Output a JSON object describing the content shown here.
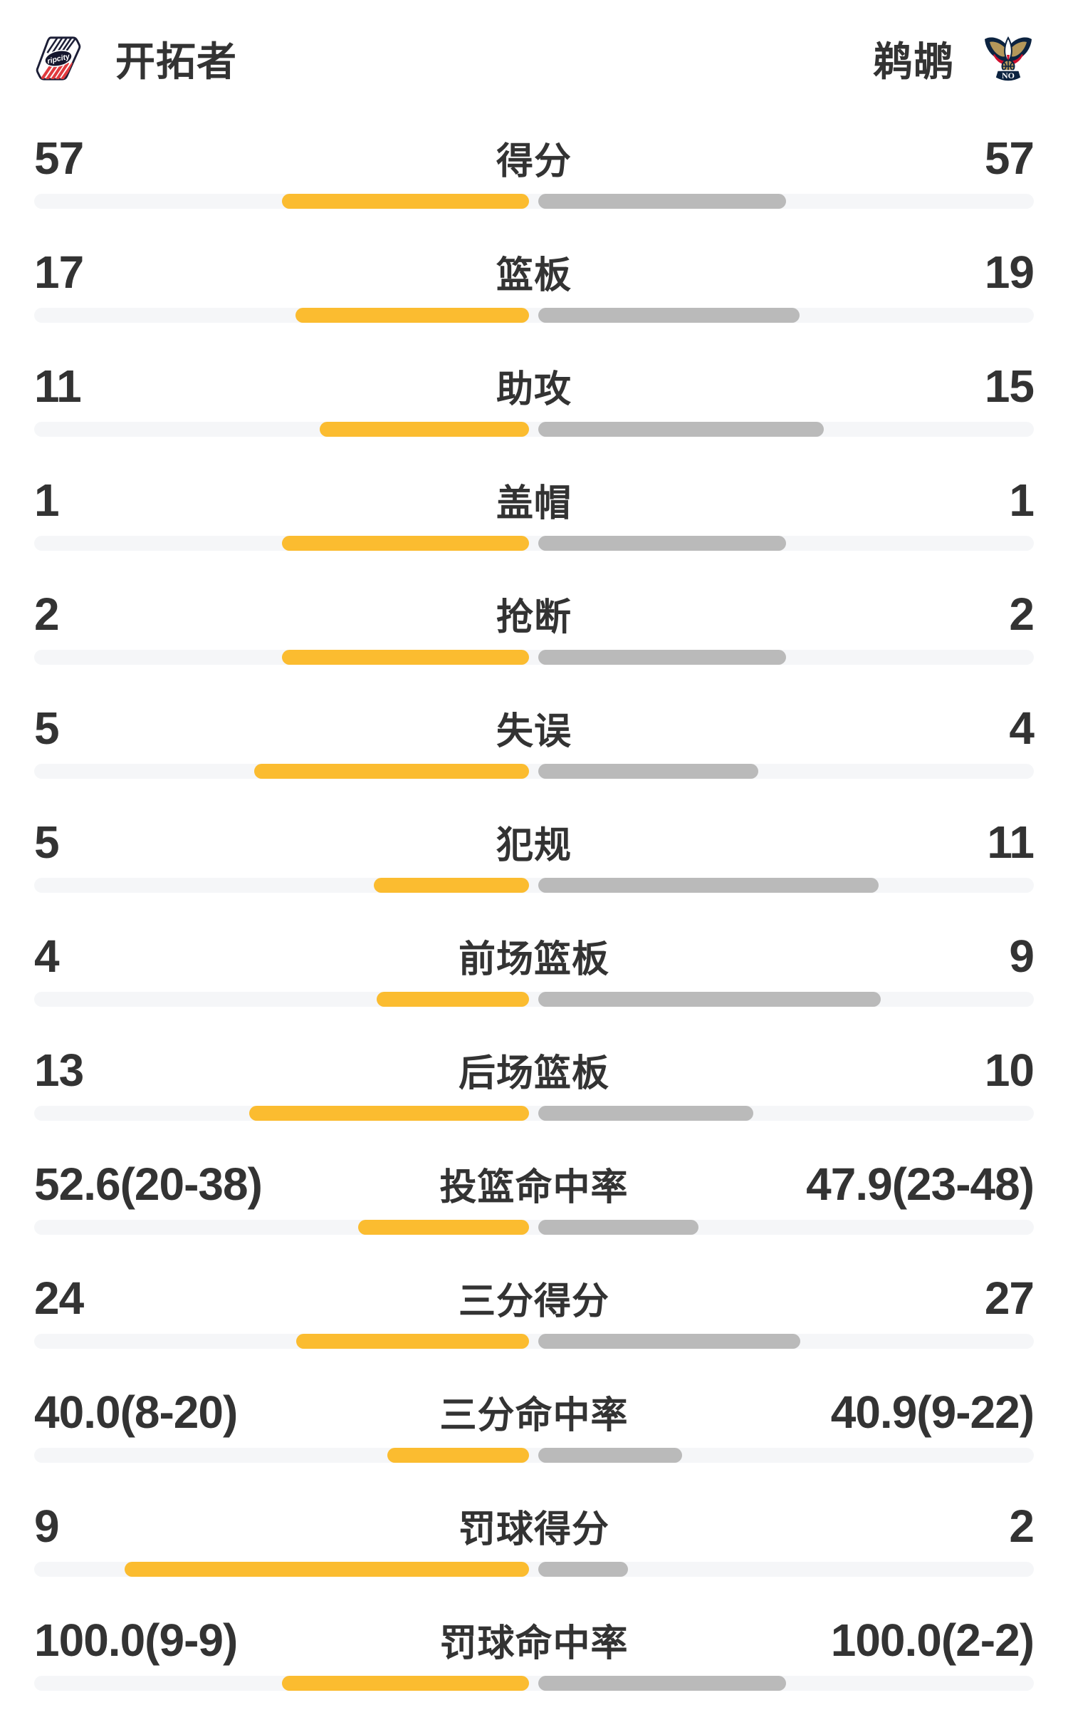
{
  "header": {
    "home": {
      "name": "开拓者",
      "logo": "blazers-ripcity-logo"
    },
    "away": {
      "name": "鹈鹕",
      "logo": "pelicans-no-logo"
    }
  },
  "colors": {
    "home_bar": "#fbbc30",
    "away_bar": "#bababa",
    "bar_track": "#f5f6f8",
    "text": "#333333",
    "blazers_navy": "#1c1e36",
    "blazers_red": "#e03a3e",
    "pelicans_navy": "#0c2340",
    "pelicans_gold": "#b4975a",
    "pelicans_red": "#ce0e2d"
  },
  "stats": [
    {
      "label": "得分",
      "home": "57",
      "away": "57",
      "home_pct": 50.0,
      "away_pct": 50.0
    },
    {
      "label": "篮板",
      "home": "17",
      "away": "19",
      "home_pct": 47.2,
      "away_pct": 52.8
    },
    {
      "label": "助攻",
      "home": "11",
      "away": "15",
      "home_pct": 42.3,
      "away_pct": 57.7
    },
    {
      "label": "盖帽",
      "home": "1",
      "away": "1",
      "home_pct": 50.0,
      "away_pct": 50.0
    },
    {
      "label": "抢断",
      "home": "2",
      "away": "2",
      "home_pct": 50.0,
      "away_pct": 50.0
    },
    {
      "label": "失误",
      "home": "5",
      "away": "4",
      "home_pct": 55.6,
      "away_pct": 44.4
    },
    {
      "label": "犯规",
      "home": "5",
      "away": "11",
      "home_pct": 31.3,
      "away_pct": 68.8
    },
    {
      "label": "前场篮板",
      "home": "4",
      "away": "9",
      "home_pct": 30.8,
      "away_pct": 69.2
    },
    {
      "label": "后场篮板",
      "home": "13",
      "away": "10",
      "home_pct": 56.5,
      "away_pct": 43.5
    },
    {
      "label": "投篮命中率",
      "home": "52.6(20-38)",
      "away": "47.9(23-48)",
      "home_pct": 34.5,
      "away_pct": 32.4
    },
    {
      "label": "三分得分",
      "home": "24",
      "away": "27",
      "home_pct": 47.1,
      "away_pct": 52.9
    },
    {
      "label": "三分命中率",
      "home": "40.0(8-20)",
      "away": "40.9(9-22)",
      "home_pct": 28.6,
      "away_pct": 29.0
    },
    {
      "label": "罚球得分",
      "home": "9",
      "away": "2",
      "home_pct": 81.8,
      "away_pct": 18.2
    },
    {
      "label": "罚球命中率",
      "home": "100.0(9-9)",
      "away": "100.0(2-2)",
      "home_pct": 50.0,
      "away_pct": 50.0
    }
  ],
  "chart_data": {
    "type": "bar",
    "orientation": "horizontal-paired",
    "title": "开拓者 vs 鹈鹕 技术统计",
    "categories": [
      "得分",
      "篮板",
      "助攻",
      "盖帽",
      "抢断",
      "失误",
      "犯规",
      "前场篮板",
      "后场篮板",
      "投篮命中率",
      "三分得分",
      "三分命中率",
      "罚球得分",
      "罚球命中率"
    ],
    "series": [
      {
        "name": "开拓者",
        "color": "#fbbc30",
        "values": [
          57,
          17,
          11,
          1,
          2,
          5,
          5,
          4,
          13,
          52.6,
          24,
          40.0,
          9,
          100.0
        ],
        "display": [
          "57",
          "17",
          "11",
          "1",
          "2",
          "5",
          "5",
          "4",
          "13",
          "52.6(20-38)",
          "24",
          "40.0(8-20)",
          "9",
          "100.0(9-9)"
        ]
      },
      {
        "name": "鹈鹕",
        "color": "#bababa",
        "values": [
          57,
          19,
          15,
          1,
          2,
          4,
          11,
          9,
          10,
          47.9,
          27,
          40.9,
          2,
          100.0
        ],
        "display": [
          "57",
          "19",
          "15",
          "1",
          "2",
          "4",
          "11",
          "9",
          "10",
          "47.9(23-48)",
          "27",
          "40.9(9-22)",
          "2",
          "100.0(2-2)"
        ]
      }
    ],
    "legend_position": "top",
    "grid": false
  }
}
